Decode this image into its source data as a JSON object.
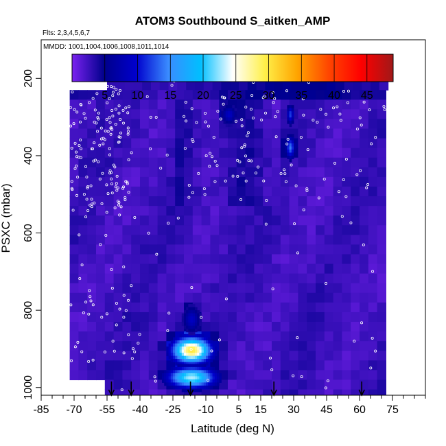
{
  "chart_data": {
    "type": "heatmap",
    "title": "ATOM3 Southbound S_aitken_AMP",
    "subtitle_flights": "Flts: 2,3,4,5,6,7",
    "subtitle_dates": "MMDD: 1001,1004,1006,1008,1011,1014",
    "xlabel": "Latitude (deg N)",
    "ylabel": "PSXC (mbar)",
    "xlim": [
      -85,
      90
    ],
    "ylim": [
      1020,
      100
    ],
    "x_ticks": [
      -85,
      -70,
      -55,
      -40,
      -25,
      -10,
      5,
      15,
      30,
      45,
      60,
      75
    ],
    "y_ticks": [
      200,
      400,
      600,
      800,
      1000
    ],
    "colorbar": {
      "min": 0,
      "max": 49,
      "ticks": [
        5,
        10,
        15,
        20,
        25,
        30,
        35,
        40,
        45
      ],
      "colors": [
        "#7a22f0",
        "#00008b",
        "#0000cd",
        "#3a8cff",
        "#00bfff",
        "#ffffff",
        "#fff04a",
        "#ffa500",
        "#ff4500",
        "#ff0000",
        "#a01818"
      ]
    },
    "arrow_latitudes": [
      -53,
      -44,
      -17,
      21,
      61
    ],
    "field_extent": {
      "lat": [
        -72,
        72
      ],
      "pressure": [
        180,
        1015
      ]
    },
    "anomalies": [
      {
        "lat": -17,
        "p": 900,
        "value": 30,
        "width_deg": 18,
        "height_mbar": 70
      },
      {
        "lat": -17,
        "p": 970,
        "value": 23,
        "width_deg": 22,
        "height_mbar": 55
      },
      {
        "lat": -17,
        "p": 820,
        "value": 9,
        "width_deg": 7,
        "height_mbar": 60
      },
      {
        "lat": 28,
        "p": 375,
        "value": 14,
        "width_deg": 4,
        "height_mbar": 55
      },
      {
        "lat": 28,
        "p": 290,
        "value": 12,
        "width_deg": 3,
        "height_mbar": 45
      },
      {
        "lat": 0,
        "p": 290,
        "value": 9,
        "width_deg": 6,
        "height_mbar": 45
      }
    ]
  }
}
